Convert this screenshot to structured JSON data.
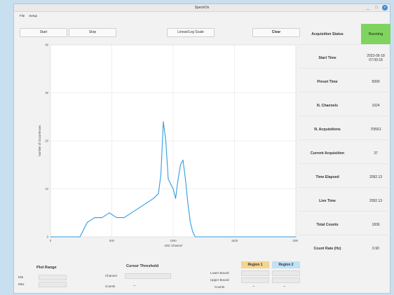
{
  "window": {
    "title": "SpectrOx"
  },
  "menu": [
    "File",
    "Setup"
  ],
  "toolbar": {
    "start": "Start",
    "stop": "Stop",
    "log": "Linear/Log Scale",
    "clear": "Clear"
  },
  "plot": {
    "ylabel": "Number of Occurrences",
    "xlabel": "ADC Channel",
    "yticks": [
      "40",
      "30",
      "20",
      "10",
      "0"
    ],
    "xticks": [
      "0",
      "500",
      "1000",
      "1500",
      "2000"
    ],
    "line_color": "#2f9de0"
  },
  "chart_data": {
    "type": "line",
    "xlabel": "ADC Channel",
    "ylabel": "Number of Occurrences",
    "xlim": [
      0,
      2000
    ],
    "ylim": [
      0,
      40
    ],
    "grid": true,
    "series": [
      {
        "x": [
          0,
          60,
          120,
          180,
          240,
          300,
          360,
          420,
          480,
          540,
          600,
          660,
          720,
          780,
          840,
          880,
          900,
          920,
          940,
          960,
          980,
          1000,
          1020,
          1040,
          1060,
          1080,
          1100,
          1120,
          1140,
          1160,
          1180,
          1200,
          1240,
          1280,
          1320,
          1400,
          1500,
          1600,
          1700,
          1800,
          1900,
          2000
        ],
        "y": [
          0,
          0,
          0,
          0,
          0,
          3,
          4,
          4,
          5,
          4,
          4,
          5,
          6,
          7,
          8,
          9,
          13,
          24,
          20,
          12,
          11,
          10,
          8,
          12,
          15,
          16,
          12,
          7,
          3,
          1,
          0,
          0,
          0,
          0,
          0,
          0,
          0,
          0,
          0,
          0,
          0,
          0
        ]
      }
    ]
  },
  "status": [
    {
      "label": "Acquisition Status",
      "value": "Running"
    },
    {
      "label": "Start Time",
      "value": "2023-05-18 07:00:18"
    },
    {
      "label": "Preset Time",
      "value": "5000"
    },
    {
      "label": "N. Channels",
      "value": "1024"
    },
    {
      "label": "N. Acquisitions",
      "value": "70/561"
    },
    {
      "label": "Current Acquisition",
      "value": "37"
    },
    {
      "label": "Time Elapsed",
      "value": "2092.13"
    },
    {
      "label": "Live Time",
      "value": "2092.13"
    },
    {
      "label": "Total Counts",
      "value": "1836"
    },
    {
      "label": "Count Rate (Hz)",
      "value": "0.90"
    }
  ],
  "bottom": {
    "plot_range": {
      "title": "Plot Range",
      "min": "Min",
      "max": "Max"
    },
    "cursor": {
      "title": "Cursor Threshold",
      "channel": "Channel",
      "counts": "Counts",
      "counts_value": "--"
    },
    "regions": {
      "region1": "Region 1",
      "region2": "Region 2",
      "region1_color": "#f4d58d",
      "region2_color": "#bfe2f4",
      "lower": "Lower Bound",
      "upper": "Upper Bound",
      "counts": "Counts",
      "r1_counts": "--",
      "r2_counts": "--"
    }
  }
}
